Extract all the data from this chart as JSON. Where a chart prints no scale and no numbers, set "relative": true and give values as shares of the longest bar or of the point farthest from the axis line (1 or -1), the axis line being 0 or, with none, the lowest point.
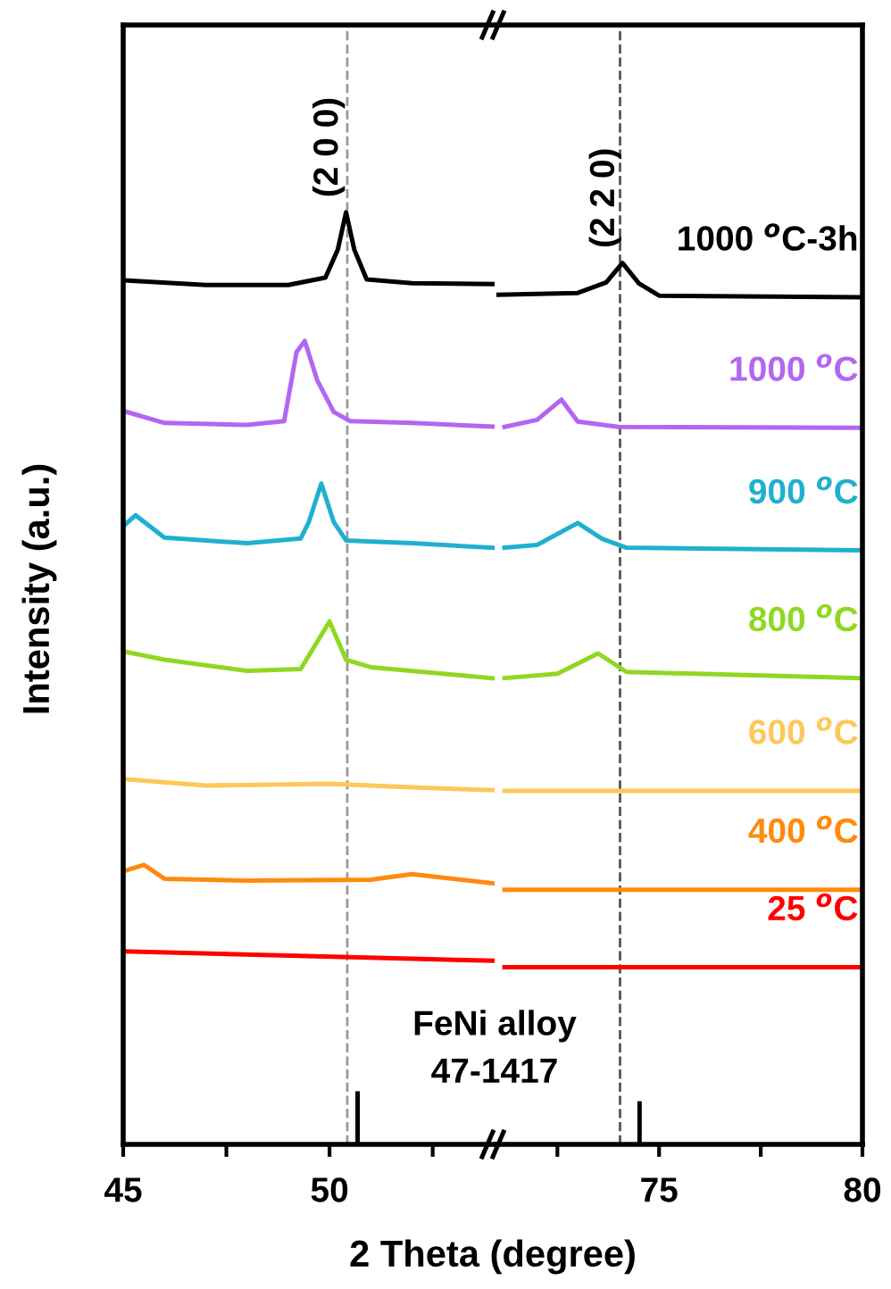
{
  "chart_data": [
    {
      "type": "line",
      "relative": true,
      "xlabel": "2 Theta (degree)",
      "ylabel": "Intensity (a.u.)",
      "xlim": [
        45,
        54
      ],
      "xticks": [
        45,
        {
          "value": 47.5,
          "label": null
        },
        50,
        {
          "value": 52.5,
          "label": null
        }
      ],
      "grid": false,
      "line_style": "solid",
      "annotations": [
        {
          "text": "(2 0 0)",
          "x": 50.4,
          "y": 1.0
        },
        "FeNi alloy\n47-1417"
      ],
      "ref_lines": [
        {
          "axis": "x",
          "value": 50.43,
          "color": "#999999",
          "line_style": "dashed"
        }
      ],
      "series": [
        {
          "color": "#000000",
          "x": [
            45,
            47,
            49,
            49.9,
            50.2,
            50.4,
            50.6,
            50.9,
            52,
            54
          ],
          "values": [
            0.927,
            0.922,
            0.922,
            0.93,
            0.96,
            1.0,
            0.96,
            0.928,
            0.924,
            0.923
          ]
        },
        {
          "color": "#b366f0",
          "x": [
            45,
            46,
            48,
            48.9,
            49.2,
            49.4,
            49.7,
            50.1,
            50.5,
            52,
            54
          ],
          "values": [
            0.787,
            0.774,
            0.772,
            0.776,
            0.85,
            0.862,
            0.82,
            0.786,
            0.776,
            0.774,
            0.77
          ]
        },
        {
          "color": "#1fb0cf",
          "x": [
            45,
            45.3,
            46,
            48,
            49.3,
            49.5,
            49.8,
            50.1,
            50.4,
            52,
            54
          ],
          "values": [
            0.663,
            0.675,
            0.651,
            0.645,
            0.65,
            0.668,
            0.709,
            0.668,
            0.648,
            0.645,
            0.64
          ]
        },
        {
          "color": "#8fd822",
          "x": [
            45,
            46,
            48,
            49.3,
            50.0,
            50.4,
            51,
            54
          ],
          "values": [
            0.529,
            0.52,
            0.508,
            0.51,
            0.561,
            0.52,
            0.512,
            0.5
          ]
        },
        {
          "color": "#fbc85a",
          "x": [
            45,
            47,
            50,
            52,
            54
          ],
          "values": [
            0.392,
            0.385,
            0.387,
            0.383,
            0.38
          ]
        },
        {
          "color": "#ff8a0d",
          "x": [
            45,
            45.5,
            46,
            48,
            51,
            52,
            54
          ],
          "values": [
            0.293,
            0.3,
            0.285,
            0.283,
            0.284,
            0.29,
            0.28
          ]
        },
        {
          "color": "#ff0000",
          "x": [
            45,
            54
          ],
          "values": [
            0.207,
            0.197
          ]
        },
        {
          "type": "bar",
          "color": "#000000",
          "x": [
            50.68
          ],
          "values": [
            0.057
          ]
        }
      ]
    },
    {
      "type": "line",
      "relative": true,
      "xlim": [
        71,
        80
      ],
      "xticks": [
        {
          "value": 72.5,
          "label": null
        },
        75,
        {
          "value": 77.5,
          "label": null
        },
        80
      ],
      "grid": false,
      "line_style": "solid",
      "annotations": [
        {
          "text": "(2 2 0)",
          "x": 74.1,
          "y": 1.0
        }
      ],
      "ref_lines": [
        {
          "axis": "x",
          "value": 74.04,
          "color": "#555555",
          "line_style": "dashed"
        }
      ],
      "series": [
        {
          "name": "1000 $^{o}$C-3h",
          "color": "#000000",
          "x": [
            71,
            73,
            73.7,
            74.1,
            74.5,
            75,
            77,
            80
          ],
          "values": [
            0.964,
            0.966,
            0.978,
            1.0,
            0.977,
            0.963,
            0.962,
            0.961
          ]
        },
        {
          "name": "1000 $^{o}$C",
          "color": "#b366f0",
          "x": [
            71.2,
            72.0,
            72.6,
            73.0,
            74,
            80
          ],
          "values": [
            0.814,
            0.822,
            0.845,
            0.82,
            0.814,
            0.813
          ]
        },
        {
          "name": "900 $^{o}$C",
          "color": "#1fb0cf",
          "x": [
            71.2,
            72,
            73.0,
            73.6,
            74.2,
            80
          ],
          "values": [
            0.677,
            0.68,
            0.705,
            0.687,
            0.677,
            0.674
          ]
        },
        {
          "name": "800 $^{o}$C",
          "color": "#8fd822",
          "x": [
            71.2,
            72.5,
            73.5,
            74.2,
            80
          ],
          "values": [
            0.529,
            0.534,
            0.557,
            0.536,
            0.529
          ]
        },
        {
          "name": "600 $^{o}$C",
          "color": "#fbc85a",
          "x": [
            71.2,
            80
          ],
          "values": [
            0.401,
            0.401
          ]
        },
        {
          "name": "400 $^{o}$C",
          "color": "#ff8a0d",
          "x": [
            71.2,
            80
          ],
          "values": [
            0.289,
            0.289
          ]
        },
        {
          "name": "25 $^{o}$C",
          "color": "#ff0000",
          "x": [
            71.2,
            80
          ],
          "values": [
            0.201,
            0.201
          ]
        },
        {
          "type": "bar",
          "color": "#000000",
          "x": [
            74.52
          ],
          "values": [
            0.049
          ]
        }
      ]
    }
  ]
}
